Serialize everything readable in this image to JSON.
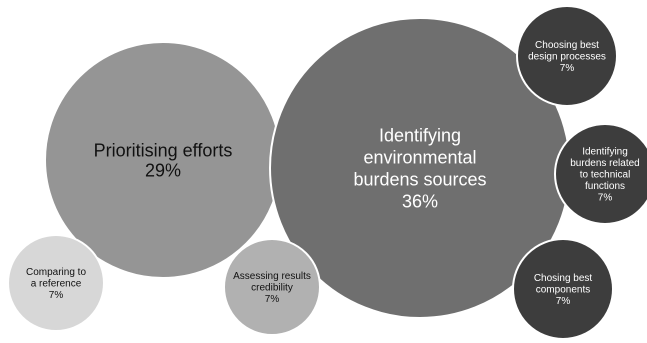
{
  "chart_data": {
    "type": "bubble",
    "title": "",
    "legend": "none",
    "bubbles": [
      {
        "label_lines": [
          "Prioritising efforts"
        ],
        "value_label": "29%",
        "value": 29,
        "color": "#959595",
        "text_color": "#111111"
      },
      {
        "label_lines": [
          "Identifying",
          "environmental",
          "burdens sources"
        ],
        "value_label": "36%",
        "value": 36,
        "color": "#6f6f6f",
        "text_color": "#ffffff"
      },
      {
        "label_lines": [
          "Choosing best",
          "design processes"
        ],
        "value_label": "7%",
        "value": 7,
        "color": "#3d3d3d",
        "text_color": "#ffffff"
      },
      {
        "label_lines": [
          "Identifying",
          "burdens related",
          "to technical",
          "functions"
        ],
        "value_label": "7%",
        "value": 7,
        "color": "#3d3d3d",
        "text_color": "#ffffff"
      },
      {
        "label_lines": [
          "Chosing best",
          "components"
        ],
        "value_label": "7%",
        "value": 7,
        "color": "#3d3d3d",
        "text_color": "#ffffff"
      },
      {
        "label_lines": [
          "Comparing to",
          "a reference"
        ],
        "value_label": "7%",
        "value": 7,
        "color": "#d7d7d7",
        "text_color": "#111111"
      },
      {
        "label_lines": [
          "Assessing results",
          "credibility"
        ],
        "value_label": "7%",
        "value": 7,
        "color": "#b1b1b1",
        "text_color": "#111111"
      }
    ]
  }
}
